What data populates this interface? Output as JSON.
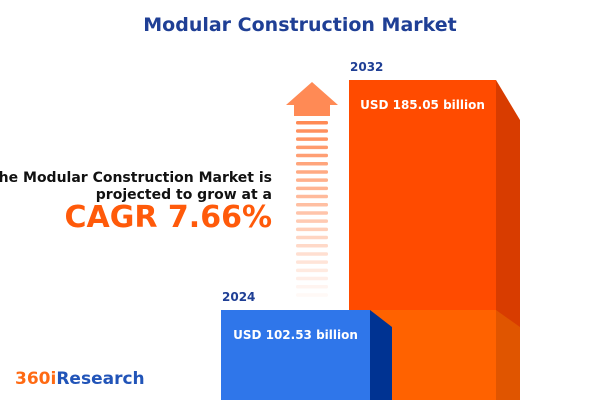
{
  "title": "Modular Construction Market",
  "description_line1": "The Modular Construction Market is",
  "description_line2": "projected to grow at a",
  "cagr_label": "CAGR 7.66%",
  "logo": {
    "part1": "360i",
    "part2": "Research"
  },
  "colors": {
    "bar_2024": "#2f76ea",
    "bar_2032": "#ff4b00",
    "title": "#1f3f95",
    "accent": "#ff5a0a"
  },
  "chart_data": {
    "type": "bar",
    "categories": [
      "2024",
      "2032"
    ],
    "values": [
      102.53,
      185.05
    ],
    "unit": "USD billion",
    "data_labels": [
      "USD 102.53 billion",
      "USD 185.05 billion"
    ],
    "cagr_percent": 7.66
  }
}
